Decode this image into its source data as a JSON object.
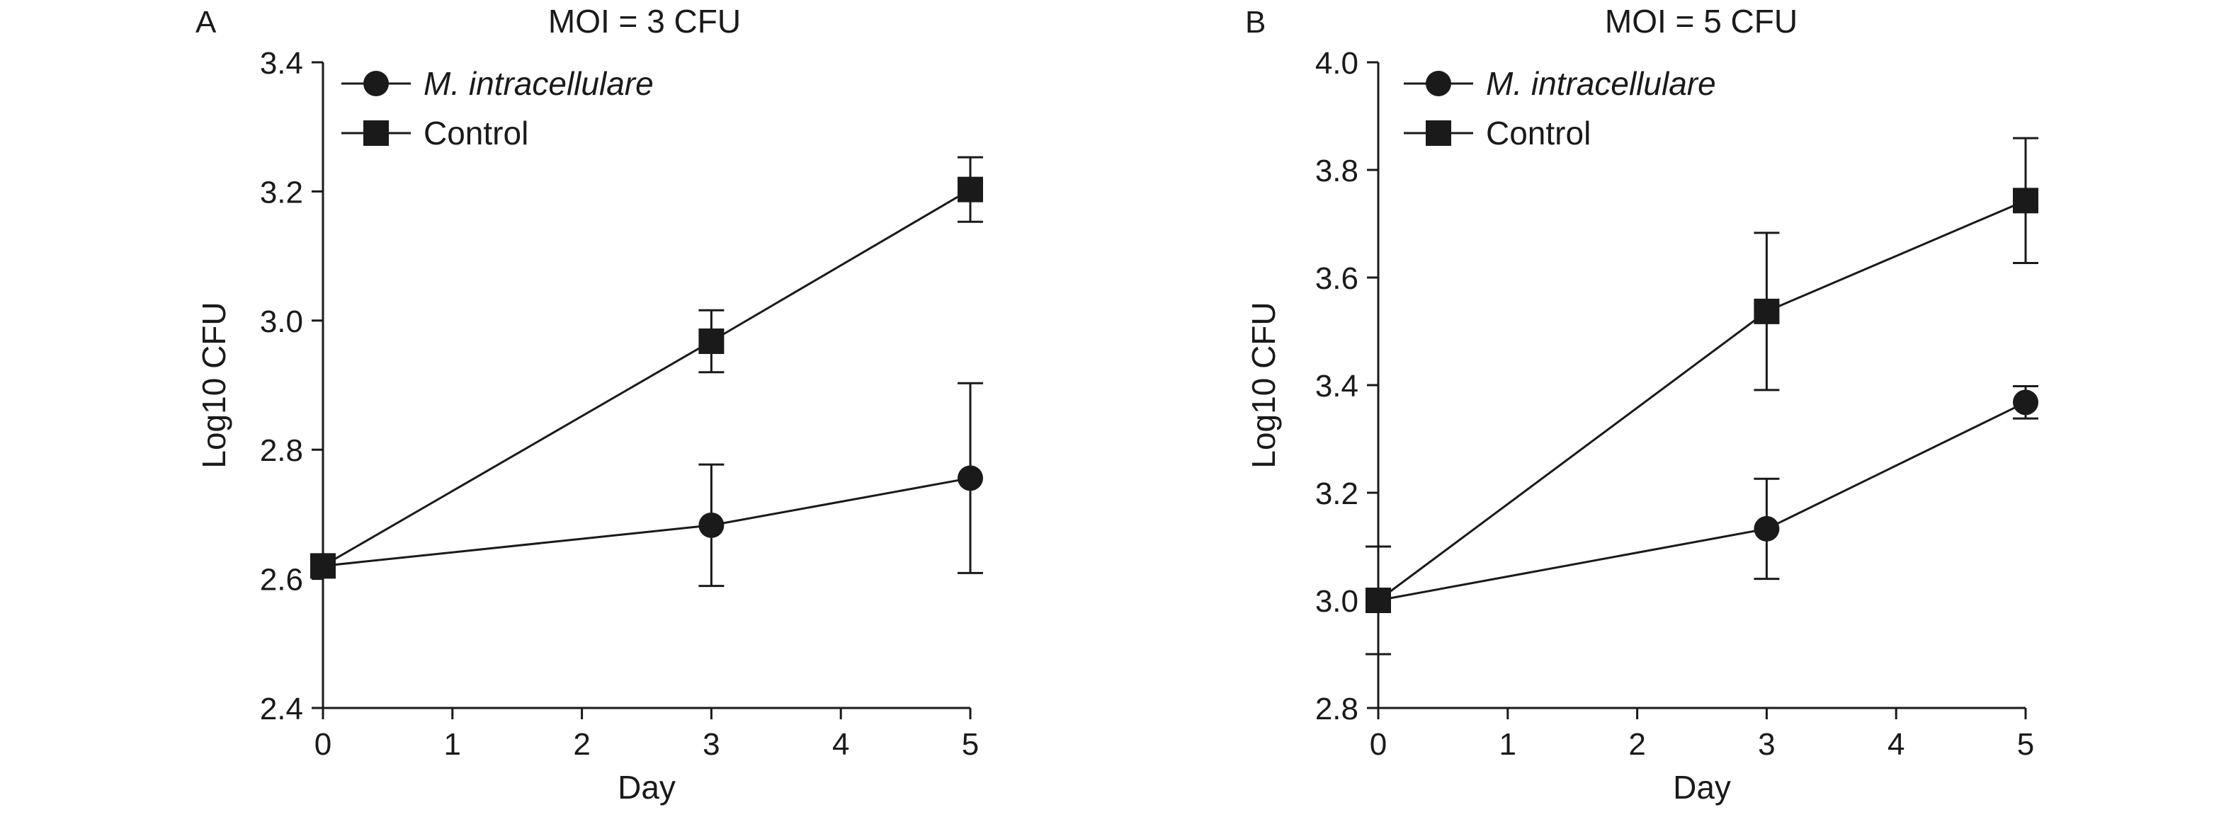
{
  "chart_data": [
    {
      "type": "line",
      "panel_label": "A",
      "title": "MOI = 3 CFU",
      "xlabel": "Day",
      "ylabel": "Log10 CFU",
      "xlim": [
        0,
        5
      ],
      "ylim": [
        2.4,
        3.4
      ],
      "xticks": [
        "0",
        "1",
        "2",
        "3",
        "4",
        "5"
      ],
      "yticks": [
        "2.4",
        "2.6",
        "2.8",
        "3.0",
        "3.2",
        "3.4"
      ],
      "legend": "top-left",
      "series": [
        {
          "name": "M. intracellulare",
          "marker": "circle",
          "x": [
            0,
            3,
            5
          ],
          "y": [
            2.62,
            2.683,
            2.756
          ],
          "err": [
            0,
            0.094,
            0.147
          ]
        },
        {
          "name": "Control",
          "marker": "square",
          "x": [
            0,
            3,
            5
          ],
          "y": [
            2.62,
            2.968,
            3.203
          ],
          "err": [
            0,
            0.048,
            0.05
          ]
        }
      ]
    },
    {
      "type": "line",
      "panel_label": "B",
      "title": "MOI = 5 CFU",
      "xlabel": "Day",
      "ylabel": "Log10 CFU",
      "xlim": [
        0,
        5
      ],
      "ylim": [
        2.8,
        4.0
      ],
      "xticks": [
        "0",
        "1",
        "2",
        "3",
        "4",
        "5"
      ],
      "yticks": [
        "2.8",
        "3.0",
        "3.2",
        "3.4",
        "3.6",
        "3.8",
        "4.0"
      ],
      "legend": "top-left",
      "series": [
        {
          "name": "M. intracellulare",
          "marker": "circle",
          "x": [
            0,
            3,
            5
          ],
          "y": [
            3.0,
            3.133,
            3.368
          ],
          "err": [
            0.1,
            0.093,
            0.03
          ]
        },
        {
          "name": "Control",
          "marker": "square",
          "x": [
            0,
            3,
            5
          ],
          "y": [
            3.0,
            3.537,
            3.743
          ],
          "err": [
            0,
            0.146,
            0.116
          ]
        }
      ]
    }
  ]
}
